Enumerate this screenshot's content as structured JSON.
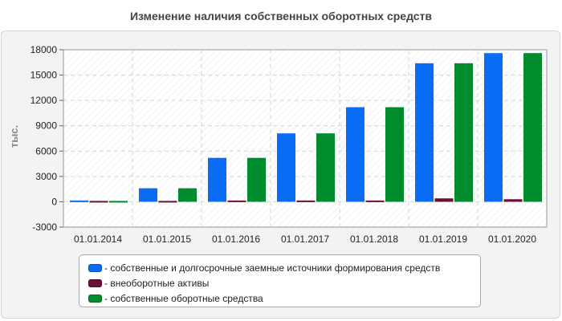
{
  "chart_data": {
    "type": "bar",
    "title": "Изменение наличия собственных оборотных средств",
    "ylabel": "тыс.",
    "xlabel": "",
    "categories": [
      "01.01.2014",
      "01.01.2015",
      "01.01.2016",
      "01.01.2017",
      "01.01.2018",
      "01.01.2019",
      "01.01.2020"
    ],
    "ylim": [
      -3000,
      18000
    ],
    "yticks": [
      -3000,
      0,
      3000,
      6000,
      9000,
      12000,
      15000,
      18000
    ],
    "grid": true,
    "legend_position": "bottom",
    "series": [
      {
        "name": "- собственные и долгосрочные заемные источники формирования средств",
        "color": "#0a6cf5",
        "values": [
          150,
          1600,
          5200,
          8100,
          11200,
          16400,
          17600
        ]
      },
      {
        "name": "- внеоборотные активы",
        "color": "#6b0f36",
        "values": [
          100,
          100,
          150,
          150,
          150,
          400,
          300
        ]
      },
      {
        "name": "- собственные оборотные средства",
        "color": "#008c2c",
        "values": [
          100,
          1600,
          5200,
          8100,
          11200,
          16400,
          17600
        ]
      }
    ]
  }
}
